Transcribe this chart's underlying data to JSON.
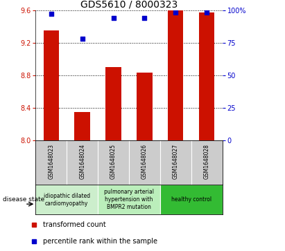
{
  "title": "GDS5610 / 8000323",
  "samples": [
    "GSM1648023",
    "GSM1648024",
    "GSM1648025",
    "GSM1648026",
    "GSM1648027",
    "GSM1648028"
  ],
  "bar_values": [
    9.35,
    8.35,
    8.9,
    8.83,
    9.6,
    9.57
  ],
  "percentile_values": [
    97,
    78,
    94,
    94,
    98,
    98
  ],
  "ylim_left": [
    8.0,
    9.6
  ],
  "ylim_right": [
    0,
    100
  ],
  "yticks_left": [
    8.0,
    8.4,
    8.8,
    9.2,
    9.6
  ],
  "yticks_right": [
    0,
    25,
    50,
    75,
    100
  ],
  "bar_color": "#cc1100",
  "point_color": "#0000cc",
  "bar_width": 0.5,
  "grid_color": "#000000",
  "disease_groups": [
    {
      "label": "idiopathic dilated\ncardiomyopathy",
      "samples": [
        0,
        1
      ],
      "color": "#cceecc"
    },
    {
      "label": "pulmonary arterial\nhypertension with\nBMPR2 mutation",
      "samples": [
        2,
        3
      ],
      "color": "#bbeebb"
    },
    {
      "label": "healthy control",
      "samples": [
        4,
        5
      ],
      "color": "#33bb33"
    }
  ],
  "legend_red_label": "transformed count",
  "legend_blue_label": "percentile rank within the sample",
  "disease_state_label": "disease state",
  "bg_color": "#ffffff",
  "label_area_color": "#cccccc",
  "title_fontsize": 10,
  "tick_fontsize": 7,
  "sample_fontsize": 5.5,
  "disease_fontsize": 5.5,
  "legend_fontsize": 7
}
